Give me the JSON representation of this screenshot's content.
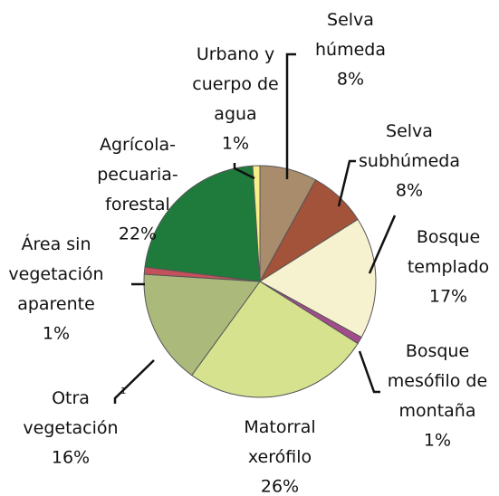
{
  "chart_data": {
    "type": "pie",
    "categories": [
      "Selva\nhúmeda",
      "Selva\nsubhúmeda",
      "Bosque\ntemplado",
      "Bosque\nmesófilo de\nmontaña",
      "Matorral\nxerófilo",
      "Otra\nvegetación",
      "Área sin\nvegetación\naparente",
      "Agrícola-\npecuaria-\nforestal",
      "Urbano y\ncuerpo de\nagua"
    ],
    "category_superscripts": [
      null,
      null,
      null,
      null,
      null,
      "1",
      null,
      null,
      null
    ],
    "values": [
      8,
      8,
      17,
      1,
      26,
      16,
      1,
      22,
      1
    ],
    "value_labels": [
      "8%",
      "8%",
      "17%",
      "1%",
      "26%",
      "16%",
      "1%",
      "22%",
      "1%"
    ],
    "colors": [
      "#a98c6c",
      "#a4533b",
      "#f6f1cf",
      "#a24c8c",
      "#d6e28e",
      "#abba7b",
      "#c4505c",
      "#1f7b3c",
      "#f6ef8a"
    ]
  }
}
